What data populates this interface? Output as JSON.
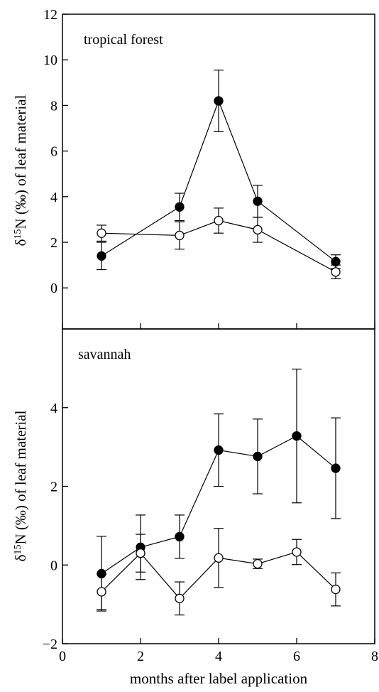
{
  "chart_data": [
    {
      "type": "line",
      "title": "tropical forest",
      "ylabel": "δ15N (‰) of leaf material",
      "xlim": [
        0,
        8
      ],
      "ylim": [
        -1.8,
        12
      ],
      "yticks": [
        0,
        2,
        4,
        6,
        8,
        10,
        12
      ],
      "yticklabels": [
        "0",
        "2",
        "4",
        "6",
        "8",
        "10",
        "12"
      ],
      "grid": false,
      "series": [
        {
          "marker": "filled-circle",
          "x": [
            1,
            3,
            4,
            5,
            7
          ],
          "y": [
            1.4,
            3.55,
            8.2,
            3.8,
            1.15
          ],
          "err": [
            0.6,
            0.6,
            1.35,
            0.7,
            0.3
          ]
        },
        {
          "marker": "open-circle",
          "x": [
            1,
            3,
            4,
            5,
            7
          ],
          "y": [
            2.4,
            2.3,
            2.95,
            2.55,
            0.7
          ],
          "err": [
            0.35,
            0.6,
            0.55,
            0.55,
            0.3
          ]
        }
      ]
    },
    {
      "type": "line",
      "title": "savannah",
      "ylabel": "δ15N (‰) of leaf material",
      "xlabel": "months after label application",
      "xlim": [
        0,
        8
      ],
      "ylim": [
        -2,
        6
      ],
      "xticks": [
        0,
        2,
        4,
        6,
        8
      ],
      "xticklabels": [
        "0",
        "2",
        "4",
        "6",
        "8"
      ],
      "yticks": [
        -2,
        0,
        2,
        4
      ],
      "yticklabels": [
        "−2",
        "0",
        "2",
        "4"
      ],
      "grid": false,
      "series": [
        {
          "marker": "filled-circle",
          "x": [
            1,
            2,
            3,
            4,
            5,
            6,
            7
          ],
          "y": [
            -0.22,
            0.45,
            0.72,
            2.92,
            2.76,
            3.28,
            2.46
          ],
          "err": [
            0.95,
            0.82,
            0.55,
            0.92,
            0.95,
            1.7,
            1.28
          ]
        },
        {
          "marker": "open-circle",
          "x": [
            1,
            2,
            3,
            4,
            5,
            6,
            7
          ],
          "y": [
            -0.68,
            0.3,
            -0.85,
            0.18,
            0.03,
            0.33,
            -0.62
          ],
          "err": [
            0.45,
            0.48,
            0.42,
            0.75,
            0.12,
            0.32,
            0.42
          ]
        }
      ]
    }
  ]
}
